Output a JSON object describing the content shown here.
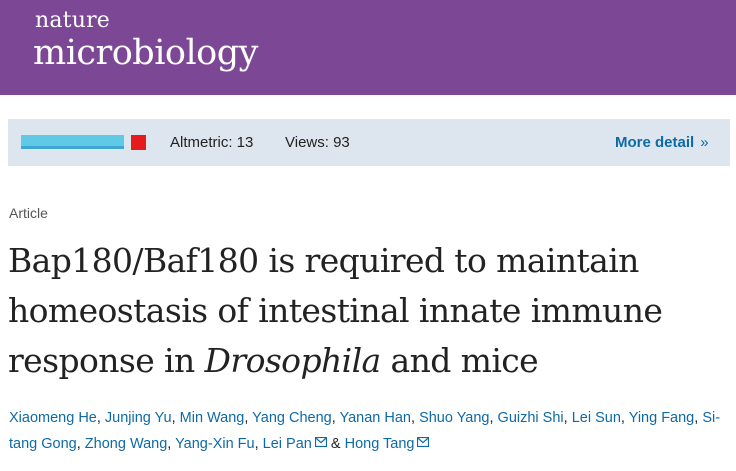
{
  "header": {
    "logo_line1": "nature",
    "logo_line2": "microbiology",
    "bg_color": "#7c4896"
  },
  "metrics": {
    "altmetric_label": "Altmetric: 13",
    "views_label": "Views: 93",
    "more_detail_label": "More detail",
    "more_detail_icon": "double-chevron-right-icon",
    "more_detail_glyph": "»"
  },
  "article": {
    "type": "Article",
    "title_part1": "Bap180/Baf180 is required to maintain homeostasis of intestinal innate immune response in ",
    "title_italic": "Drosophila",
    "title_part2": " and mice"
  },
  "authors": [
    {
      "name": "Xiaomeng He",
      "sep": ", "
    },
    {
      "name": "Junjing Yu",
      "sep": ", "
    },
    {
      "name": "Min Wang",
      "sep": ", "
    },
    {
      "name": "Yang Cheng",
      "sep": ", "
    },
    {
      "name": "Yanan Han",
      "sep": ", "
    },
    {
      "name": "Shuo Yang",
      "sep": ", "
    },
    {
      "name": "Guizhi Shi",
      "sep": ", "
    },
    {
      "name": "Lei Sun",
      "sep": ", "
    },
    {
      "name": "Ying Fang",
      "sep": ", "
    },
    {
      "name": "Si-tang Gong",
      "sep": ", "
    },
    {
      "name": "Zhong Wang",
      "sep": ", "
    },
    {
      "name": "Yang-Xin Fu",
      "sep": ", "
    },
    {
      "name": "Lei Pan",
      "sep": " & ",
      "mail": true
    },
    {
      "name": "Hong Tang",
      "sep": "",
      "mail": true
    }
  ],
  "colors": {
    "link": "#0e6aa6",
    "metrics_bar": "#dde6ee",
    "altmetric_blue": "#60c9e6",
    "altmetric_red": "#e61b1b"
  }
}
